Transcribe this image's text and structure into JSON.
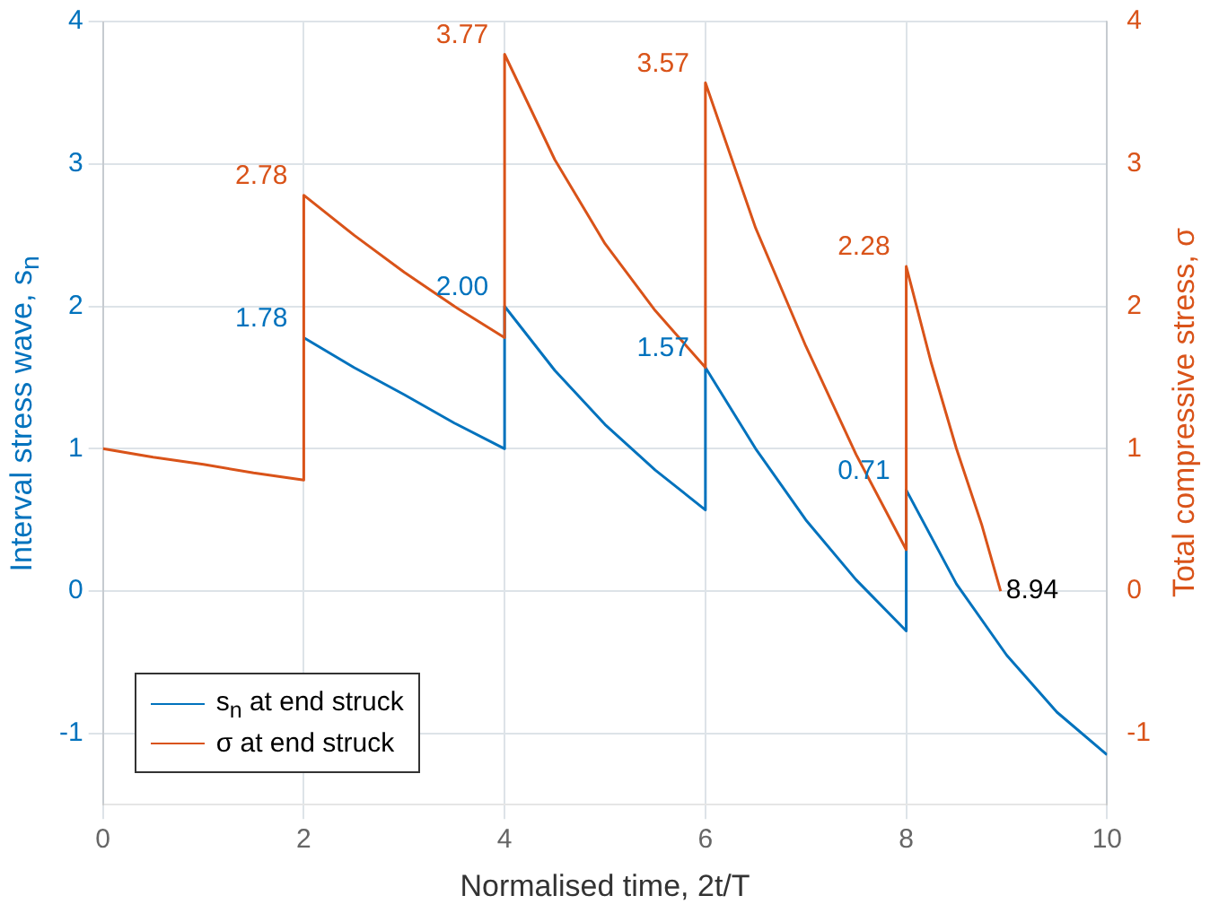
{
  "chart_data": {
    "type": "line",
    "xlabel": "Normalised time, 2t/T",
    "ylabel": "Interval stress wave, s$_{n}$",
    "y2label": "Total compressive stress, σ",
    "xlim": [
      0,
      10
    ],
    "xticks": [
      0,
      2,
      4,
      6,
      8,
      10
    ],
    "ylim": [
      -1.5,
      4
    ],
    "yticks": [
      -1,
      0,
      1,
      2,
      3,
      4
    ],
    "y2lim": [
      -1.5,
      4
    ],
    "y2ticks": [
      -1,
      0,
      1,
      2,
      3,
      4
    ],
    "grid": true,
    "legend": "bottom left",
    "marker": "none",
    "line_style": "solid",
    "series": [
      {
        "name": "s$_{n}$ at end struck",
        "color": "#0072bd",
        "axis": "y",
        "x": [
          2,
          2.5,
          3,
          3.5,
          4,
          4,
          4.5,
          5,
          5.5,
          6,
          6,
          6.5,
          7,
          7.5,
          8,
          8,
          8.5,
          9,
          9.5,
          10
        ],
        "values": [
          1.78,
          1.57,
          1.38,
          1.18,
          1.0,
          2.0,
          1.55,
          1.17,
          0.85,
          0.57,
          1.57,
          1.0,
          0.5,
          0.08,
          -0.28,
          0.71,
          0.05,
          -0.45,
          -0.85,
          -1.15
        ],
        "value_labels": [
          "1.78",
          null,
          null,
          null,
          null,
          "2.00",
          null,
          null,
          null,
          null,
          "1.57",
          null,
          null,
          null,
          null,
          "0.71",
          null,
          null,
          null,
          null
        ]
      },
      {
        "name": "σ at end struck",
        "color": "#d95319",
        "axis": "y2",
        "x": [
          0,
          0.5,
          1,
          1.5,
          2,
          2,
          2.5,
          3,
          3.5,
          4,
          4,
          4.5,
          5,
          5.5,
          6,
          6,
          6.5,
          7,
          7.5,
          8,
          8,
          8.25,
          8.5,
          8.75,
          8.94
        ],
        "values": [
          1,
          0.94,
          0.89,
          0.83,
          0.78,
          2.78,
          2.5,
          2.24,
          2.0,
          1.78,
          3.77,
          3.03,
          2.44,
          1.97,
          1.57,
          3.57,
          2.55,
          1.72,
          0.96,
          0.29,
          2.28,
          1.6,
          1.0,
          0.47,
          0
        ],
        "value_labels": [
          null,
          null,
          null,
          null,
          null,
          "2.78",
          null,
          null,
          null,
          null,
          "3.77",
          null,
          null,
          null,
          null,
          "3.57",
          null,
          null,
          null,
          null,
          "2.28",
          null,
          null,
          null,
          null
        ]
      }
    ],
    "annotations": [
      {
        "text": "8.94",
        "x": 8.94,
        "y": 0
      }
    ]
  }
}
